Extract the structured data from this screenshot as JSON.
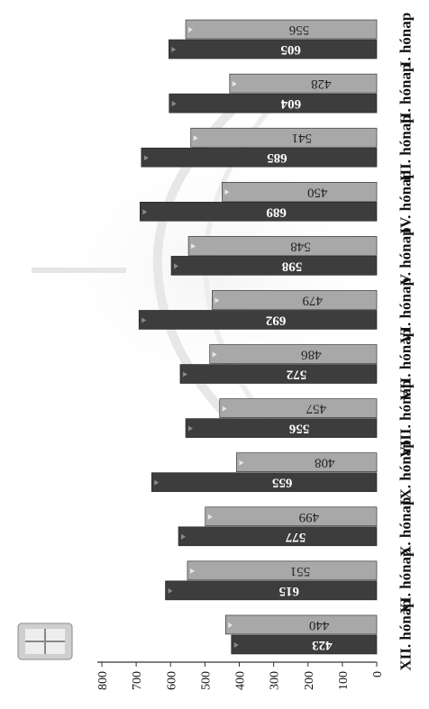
{
  "chart_data": {
    "type": "bar",
    "orientation": "horizontal",
    "rotation_note": "image shown rotated 90° clockwise",
    "categories": [
      "I. hónap",
      "II. hónap",
      "III. hónap",
      "IV. hónap",
      "V. hónap",
      "VI. hónap",
      "VII. hónap",
      "VIII. hónap",
      "IX. hónap",
      "X. hónap",
      "XI. hónap",
      "XII. hónap"
    ],
    "series": [
      {
        "values": [
          605,
          604,
          685,
          689,
          598,
          692,
          572,
          556,
          655,
          577,
          615,
          423
        ],
        "color": "#3d3d3d"
      },
      {
        "values": [
          556,
          428,
          541,
          450,
          548,
          479,
          486,
          457,
          408,
          499,
          551,
          440
        ],
        "color": "#a8a8a8"
      }
    ],
    "value_axis": {
      "min": 0,
      "max": 800,
      "step": 100,
      "tick_labels": [
        "0",
        "100",
        "200",
        "300",
        "400",
        "500",
        "600",
        "700",
        "800"
      ]
    },
    "grid": false,
    "legend": "none"
  }
}
